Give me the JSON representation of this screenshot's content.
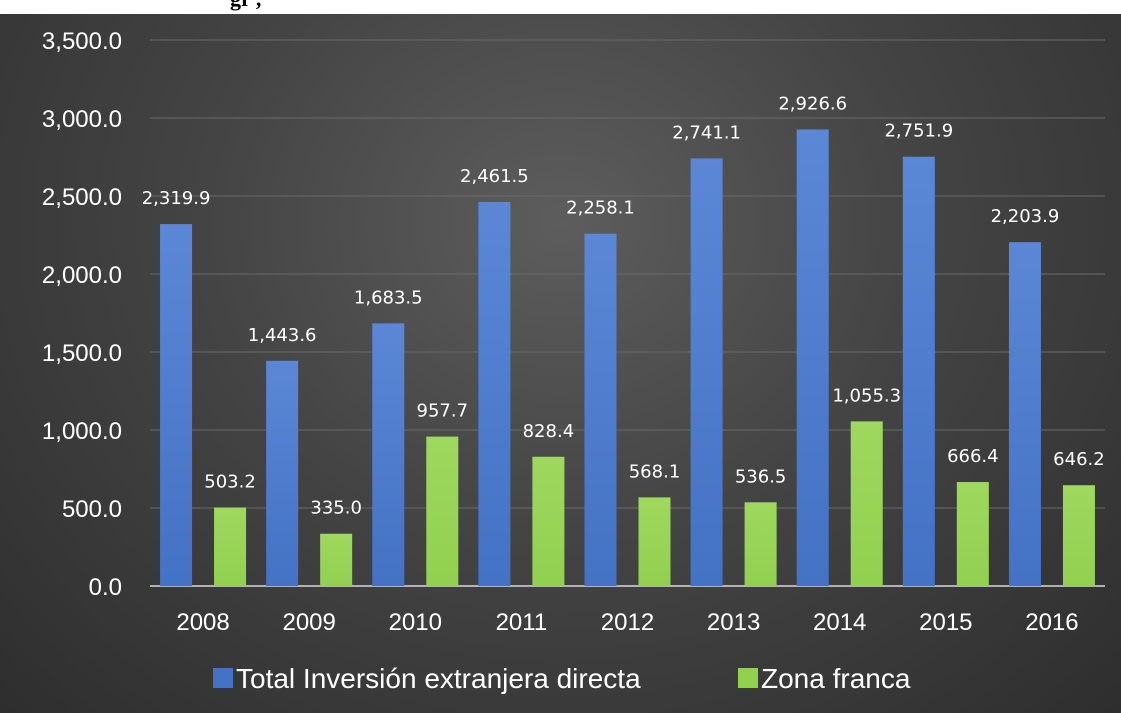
{
  "header": {
    "title_fragment": "gr                                     , "
  },
  "colors": {
    "total": "#4472c4",
    "zona": "#92d050",
    "grid": "#6a6a6a",
    "axis": "#d9d9d9"
  },
  "chart_data": {
    "type": "bar",
    "categories": [
      "2008",
      "2009",
      "2010",
      "2011",
      "2012",
      "2013",
      "2014",
      "2015",
      "2016"
    ],
    "series": [
      {
        "name": "Total Inversión extranjera directa",
        "values": [
          2319.9,
          1443.6,
          1683.5,
          2461.5,
          2258.1,
          2741.1,
          2926.6,
          2751.9,
          2203.9
        ],
        "labels": [
          "2,319.9",
          "1,443.6",
          "1,683.5",
          "2,461.5",
          "2,258.1",
          "2,741.1",
          "2,926.6",
          "2,751.9",
          "2,203.9"
        ]
      },
      {
        "name": "Zona franca",
        "values": [
          503.2,
          335.0,
          957.7,
          828.4,
          568.1,
          536.5,
          1055.3,
          666.4,
          646.2
        ],
        "labels": [
          "503.2",
          "335.0",
          "957.7",
          "828.4",
          "568.1",
          "536.5",
          "1,055.3",
          "666.4",
          "646.2"
        ]
      }
    ],
    "ylim": [
      0,
      3500
    ],
    "yticks": [
      "0.0",
      "500.0",
      "1,000.0",
      "1,500.0",
      "2,000.0",
      "2,500.0",
      "3,000.0",
      "3,500.0"
    ],
    "grid": true,
    "legend": "bottom"
  }
}
